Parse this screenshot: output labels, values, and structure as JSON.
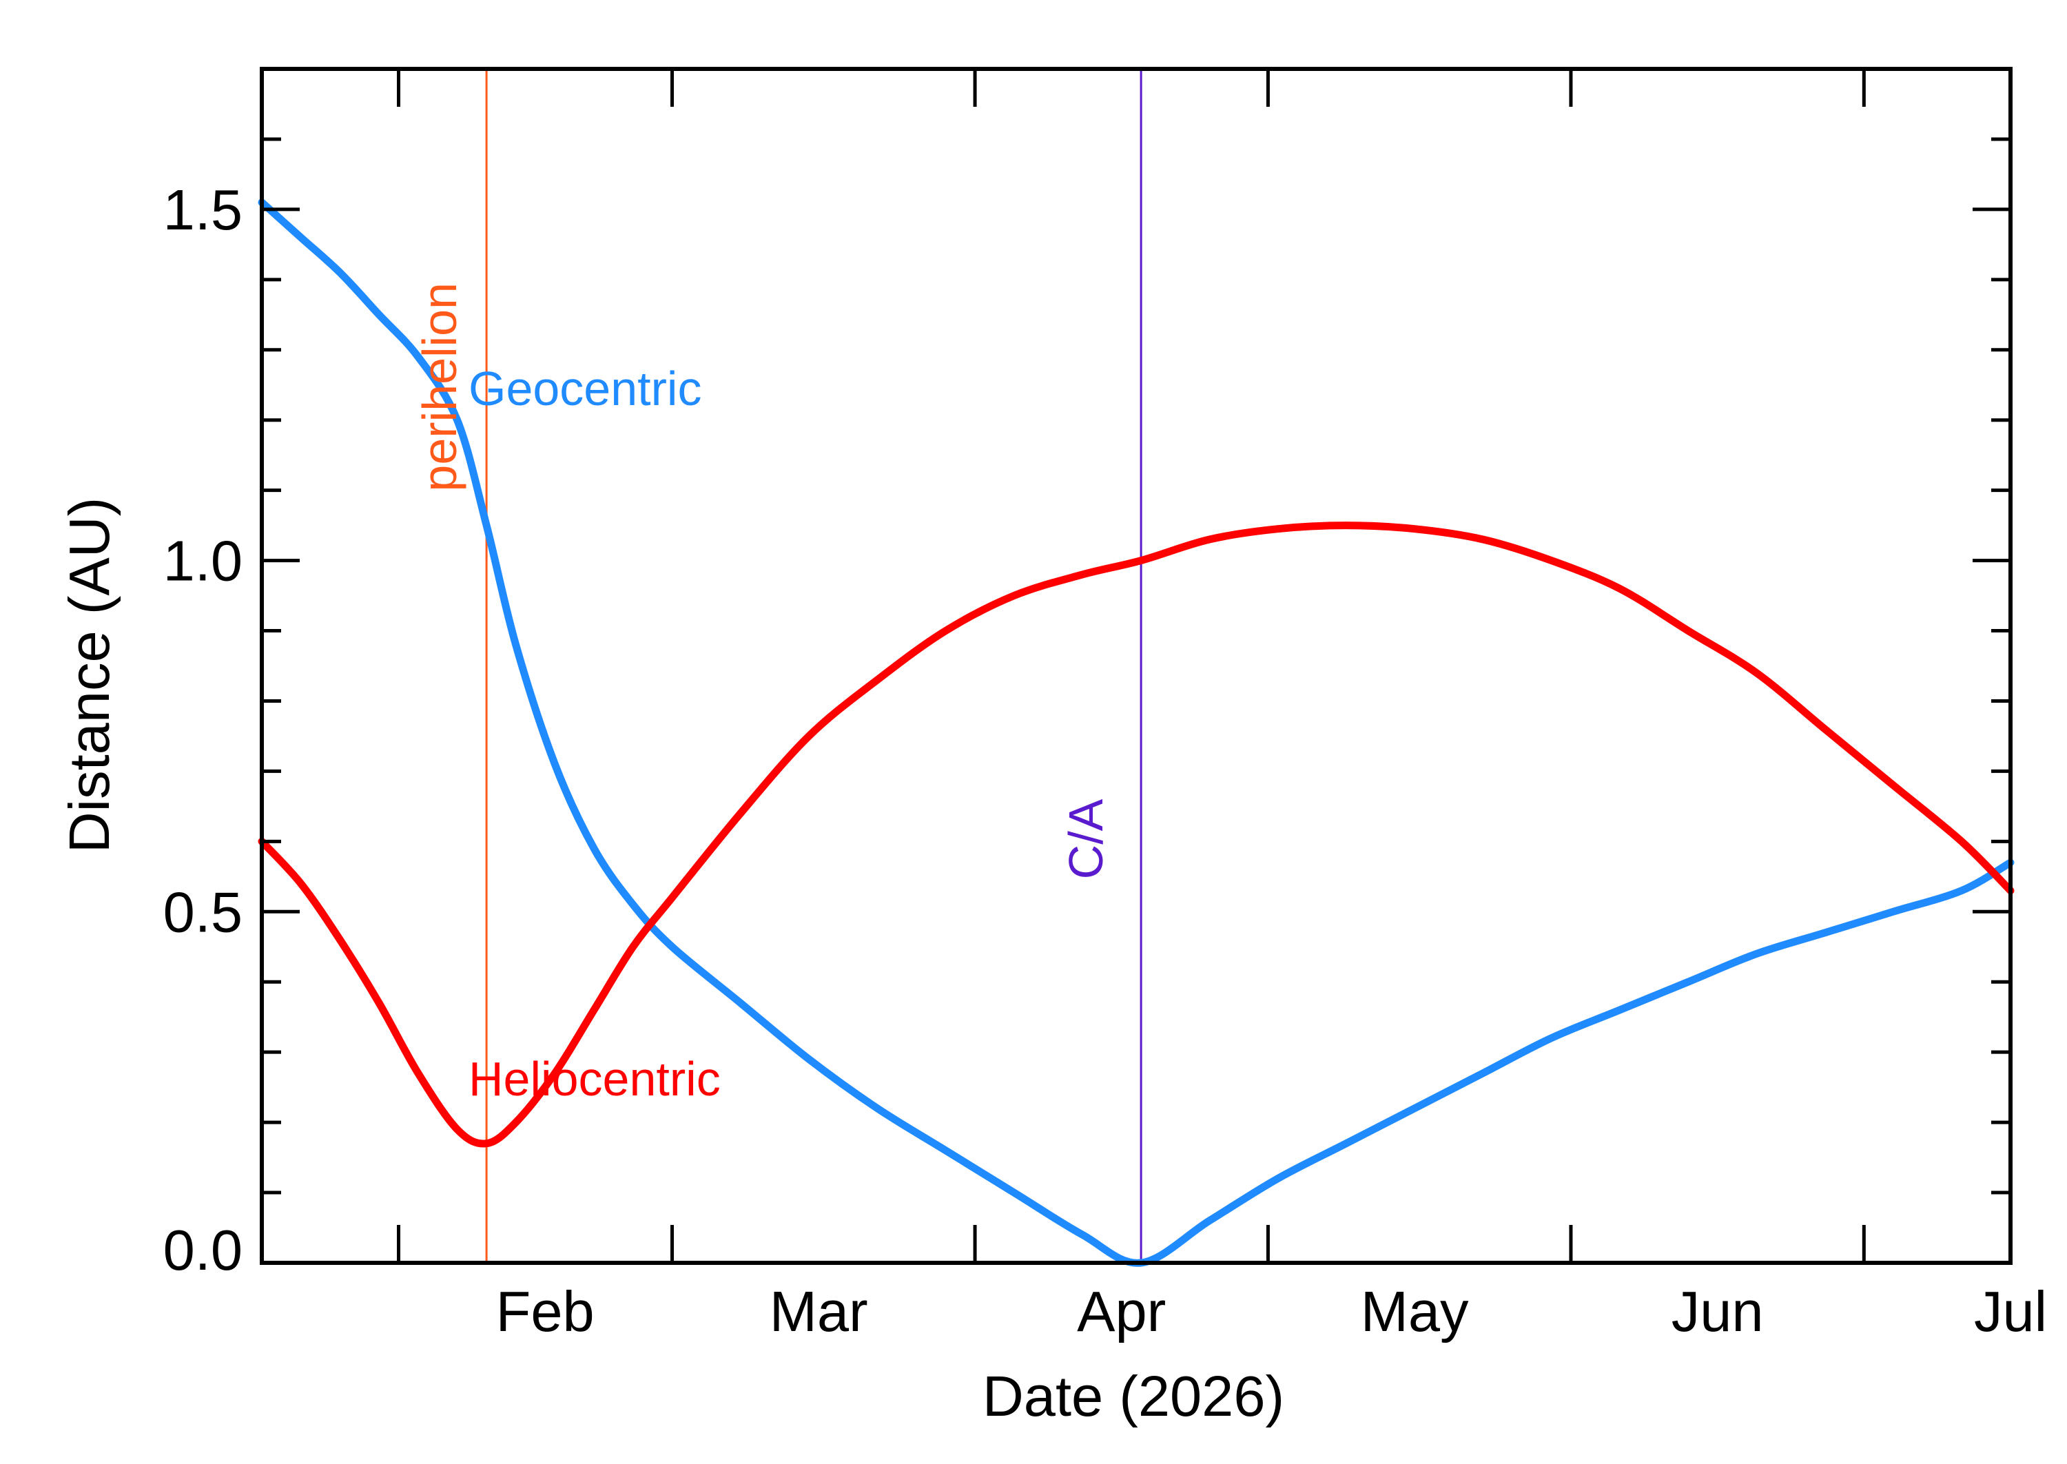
{
  "chart_data": {
    "type": "line",
    "xlabel": "Date (2026)",
    "ylabel": "Distance (AU)",
    "xlim": [
      "2026-01-18",
      "2026-07-16"
    ],
    "ylim": [
      0,
      1.7
    ],
    "x_ticks": [
      {
        "label": "Feb",
        "date": "2026-02-01"
      },
      {
        "label": "Mar",
        "date": "2026-03-01"
      },
      {
        "label": "Apr",
        "date": "2026-04-01"
      },
      {
        "label": "May",
        "date": "2026-05-01"
      },
      {
        "label": "Jun",
        "date": "2026-06-01"
      },
      {
        "label": "Jul",
        "date": "2026-07-01"
      }
    ],
    "y_ticks": [
      "0.0",
      "0.5",
      "1.0",
      "1.5"
    ],
    "y_tick_values": [
      0,
      0.5,
      1.0,
      1.5
    ],
    "y_minor_step": 0.1,
    "grid": false,
    "markers": [
      {
        "label": "perihelion",
        "date": "2026-02-10",
        "color": "#ff5a1a"
      },
      {
        "label": "C/A",
        "date": "2026-04-18",
        "color": "#5a1acd"
      }
    ],
    "series": [
      {
        "name": "Geocentric",
        "color": "#1f8bff",
        "points": [
          [
            "2026-01-18",
            1.51
          ],
          [
            "2026-01-22",
            1.46
          ],
          [
            "2026-01-26",
            1.41
          ],
          [
            "2026-01-30",
            1.35
          ],
          [
            "2026-02-03",
            1.29
          ],
          [
            "2026-02-07",
            1.2
          ],
          [
            "2026-02-10",
            1.05
          ],
          [
            "2026-02-13",
            0.88
          ],
          [
            "2026-02-17",
            0.71
          ],
          [
            "2026-02-21",
            0.59
          ],
          [
            "2026-02-25",
            0.51
          ],
          [
            "2026-03-01",
            0.45
          ],
          [
            "2026-03-08",
            0.37
          ],
          [
            "2026-03-15",
            0.29
          ],
          [
            "2026-03-22",
            0.22
          ],
          [
            "2026-03-29",
            0.16
          ],
          [
            "2026-04-05",
            0.1
          ],
          [
            "2026-04-12",
            0.04
          ],
          [
            "2026-04-18",
            0.0
          ],
          [
            "2026-04-25",
            0.06
          ],
          [
            "2026-05-02",
            0.12
          ],
          [
            "2026-05-09",
            0.17
          ],
          [
            "2026-05-16",
            0.22
          ],
          [
            "2026-05-23",
            0.27
          ],
          [
            "2026-05-30",
            0.32
          ],
          [
            "2026-06-06",
            0.36
          ],
          [
            "2026-06-13",
            0.4
          ],
          [
            "2026-06-20",
            0.44
          ],
          [
            "2026-06-27",
            0.47
          ],
          [
            "2026-07-04",
            0.5
          ],
          [
            "2026-07-11",
            0.53
          ],
          [
            "2026-07-16",
            0.57
          ]
        ]
      },
      {
        "name": "Heliocentric",
        "color": "#ff0000",
        "points": [
          [
            "2026-01-18",
            0.6
          ],
          [
            "2026-01-22",
            0.54
          ],
          [
            "2026-01-26",
            0.46
          ],
          [
            "2026-01-30",
            0.37
          ],
          [
            "2026-02-03",
            0.27
          ],
          [
            "2026-02-07",
            0.19
          ],
          [
            "2026-02-10",
            0.17
          ],
          [
            "2026-02-13",
            0.2
          ],
          [
            "2026-02-17",
            0.27
          ],
          [
            "2026-02-21",
            0.36
          ],
          [
            "2026-02-25",
            0.45
          ],
          [
            "2026-03-01",
            0.52
          ],
          [
            "2026-03-08",
            0.64
          ],
          [
            "2026-03-15",
            0.75
          ],
          [
            "2026-03-22",
            0.83
          ],
          [
            "2026-03-29",
            0.9
          ],
          [
            "2026-04-05",
            0.95
          ],
          [
            "2026-04-12",
            0.98
          ],
          [
            "2026-04-18",
            1.0
          ],
          [
            "2026-04-25",
            1.03
          ],
          [
            "2026-05-02",
            1.045
          ],
          [
            "2026-05-09",
            1.05
          ],
          [
            "2026-05-16",
            1.045
          ],
          [
            "2026-05-23",
            1.03
          ],
          [
            "2026-05-30",
            1.0
          ],
          [
            "2026-06-06",
            0.96
          ],
          [
            "2026-06-13",
            0.9
          ],
          [
            "2026-06-20",
            0.84
          ],
          [
            "2026-06-27",
            0.76
          ],
          [
            "2026-07-04",
            0.68
          ],
          [
            "2026-07-11",
            0.6
          ],
          [
            "2026-07-16",
            0.53
          ]
        ]
      }
    ],
    "series_labels": [
      "Geocentric",
      "Heliocentric"
    ]
  }
}
